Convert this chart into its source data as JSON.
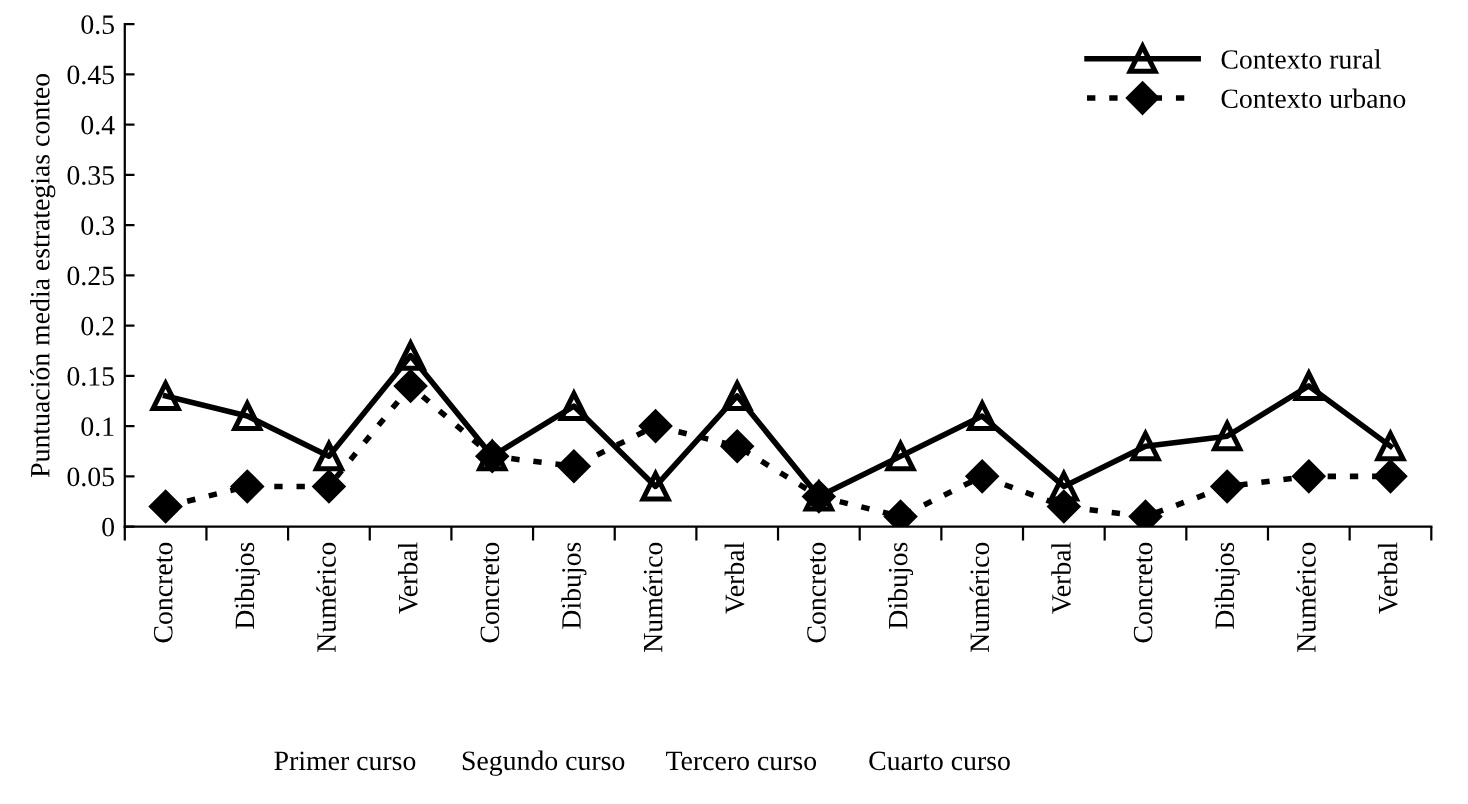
{
  "chart_data": {
    "type": "line",
    "ylabel": "Puntuación media estrategias conteo",
    "categories": [
      "Concreto",
      "Dibujos",
      "Numérico",
      "Verbal",
      "Concreto",
      "Dibujos",
      "Numérico",
      "Verbal",
      "Concreto",
      "Dibujos",
      "Numérico",
      "Verbal",
      "Concreto",
      "Dibujos",
      "Numérico",
      "Verbal"
    ],
    "series": [
      {
        "name": "Contexto rural",
        "color": "#000000",
        "marker": "triangle",
        "line_style": "solid",
        "values": [
          0.13,
          0.11,
          0.07,
          0.17,
          0.07,
          0.12,
          0.04,
          0.13,
          0.03,
          0.07,
          0.11,
          0.04,
          0.08,
          0.09,
          0.14,
          0.08
        ]
      },
      {
        "name": "Contexto urbano",
        "color": "#000000",
        "marker": "diamond",
        "line_style": "dotted",
        "values": [
          0.02,
          0.04,
          0.04,
          0.14,
          0.07,
          0.06,
          0.1,
          0.08,
          0.03,
          0.01,
          0.05,
          0.02,
          0.01,
          0.04,
          0.05,
          0.05
        ]
      }
    ],
    "ylim": [
      0,
      0.5
    ],
    "yticks": [
      0,
      0.05,
      0.1,
      0.15,
      0.2,
      0.25,
      0.3,
      0.35,
      0.4,
      0.45,
      0.5
    ],
    "grid": false,
    "legend": "top right",
    "annotations": [
      "Primer curso",
      "Segundo curso",
      "Tercero curso",
      "Cuarto curso"
    ]
  }
}
